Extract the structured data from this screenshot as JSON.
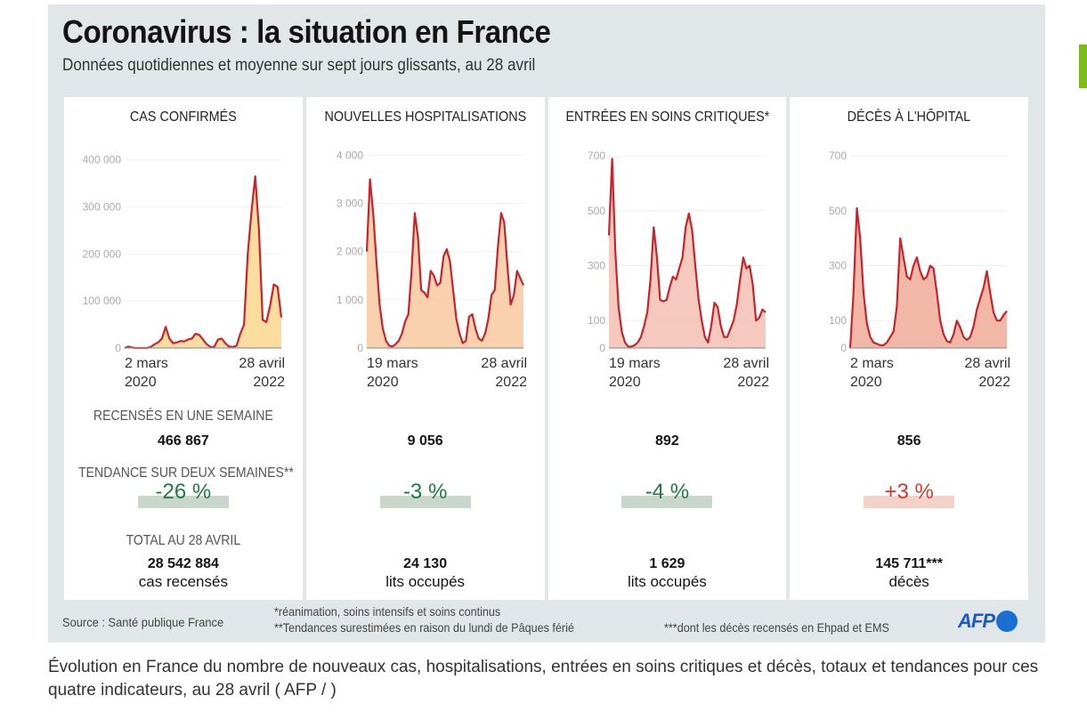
{
  "header": {
    "title": "Coronavirus : la situation en France",
    "subtitle": "Données quotidiennes et moyenne sur sept jours glissants, au 28 avril"
  },
  "labels": {
    "weekly": "RECENSÉS EN UNE SEMAINE",
    "trend": "TENDANCE SUR DEUX SEMAINES**",
    "total": "TOTAL AU 28 AVRIL"
  },
  "colors": {
    "line": "#c8242b",
    "trend_down_text": "#1f7a45",
    "trend_down_bg": "#c9d6cc",
    "trend_up_text": "#d63a32",
    "trend_up_bg": "#f4d2c8",
    "accent_green": "#7dba1f",
    "afp_blue": "#1a5bc6"
  },
  "panels": [
    {
      "title": "CAS CONFIRMÉS",
      "weekly": "466 867",
      "trend": "-26 %",
      "trend_direction": "down",
      "total": "28 542 884",
      "total_sub": "cas recensés"
    },
    {
      "title": "NOUVELLES HOSPITALISATIONS",
      "weekly": "9 056",
      "trend": "-3 %",
      "trend_direction": "down",
      "total": "24 130",
      "total_sub": "lits occupés"
    },
    {
      "title": "ENTRÉES EN SOINS CRITIQUES*",
      "weekly": "892",
      "trend": "-4 %",
      "trend_direction": "down",
      "total": "1 629",
      "total_sub": "lits occupés"
    },
    {
      "title": "DÉCÈS À L'HÔPITAL",
      "weekly": "856",
      "trend": "+3 %",
      "trend_direction": "up",
      "total": "145 711***",
      "total_sub": "décès"
    }
  ],
  "chart_data": [
    {
      "type": "area",
      "title": "CAS CONFIRMÉS",
      "x_start": [
        "2 mars",
        "2020"
      ],
      "x_end": [
        "28 avril",
        "2022"
      ],
      "yticks": [
        0,
        100000,
        200000,
        300000,
        400000
      ],
      "ytick_labels": [
        "0",
        "100 000",
        "200 000",
        "300 000",
        "400 000"
      ],
      "ylim": [
        0,
        420000
      ],
      "fill": "#f9d78e",
      "series_7day_avg": [
        0,
        3000,
        1000,
        0,
        0,
        0,
        0,
        2000,
        8000,
        12000,
        20000,
        45000,
        20000,
        10000,
        12000,
        15000,
        14000,
        18000,
        20000,
        30000,
        28000,
        18000,
        8000,
        2000,
        2000,
        18000,
        20000,
        10000,
        3000,
        2000,
        5000,
        30000,
        50000,
        200000,
        290000,
        365000,
        250000,
        60000,
        55000,
        90000,
        135000,
        130000,
        65000
      ]
    },
    {
      "type": "area",
      "title": "NOUVELLES HOSPITALISATIONS",
      "x_start": [
        "19 mars",
        "2020"
      ],
      "x_end": [
        "28 avril",
        "2022"
      ],
      "yticks": [
        0,
        1000,
        2000,
        3000,
        4000
      ],
      "ytick_labels": [
        "0",
        "1 000",
        "2 000",
        "3 000",
        "4 000"
      ],
      "ylim": [
        0,
        4100
      ],
      "fill": "#f8c9a0",
      "series_7day_avg": [
        2000,
        3500,
        2800,
        1800,
        900,
        400,
        150,
        50,
        30,
        80,
        150,
        300,
        550,
        700,
        1600,
        2800,
        2300,
        1200,
        1150,
        1050,
        1600,
        1500,
        1300,
        1350,
        1900,
        2050,
        1800,
        1200,
        600,
        300,
        100,
        150,
        650,
        700,
        400,
        200,
        150,
        300,
        600,
        1100,
        1200,
        2100,
        2800,
        2600,
        1700,
        900,
        1100,
        1600,
        1450,
        1300
      ]
    },
    {
      "type": "area",
      "title": "ENTRÉES EN SOINS CRITIQUES*",
      "x_start": [
        "19 mars",
        "2020"
      ],
      "x_end": [
        "28 avril",
        "2022"
      ],
      "yticks": [
        0,
        100,
        300,
        500,
        700
      ],
      "ytick_labels": [
        "0",
        "100",
        "300",
        "500",
        "700"
      ],
      "ylim": [
        0,
        720
      ],
      "fill": "#f5c0b3",
      "series_7day_avg": [
        410,
        690,
        350,
        150,
        60,
        20,
        5,
        5,
        10,
        20,
        40,
        80,
        130,
        250,
        440,
        330,
        175,
        170,
        175,
        220,
        260,
        250,
        290,
        330,
        440,
        490,
        430,
        300,
        180,
        100,
        40,
        20,
        80,
        165,
        150,
        80,
        40,
        40,
        70,
        100,
        160,
        250,
        330,
        290,
        300,
        230,
        100,
        110,
        140,
        130
      ]
    },
    {
      "type": "area",
      "title": "DÉCÈS À L'HÔPITAL",
      "x_start": [
        "2 mars",
        "2020"
      ],
      "x_end": [
        "28 avril",
        "2022"
      ],
      "yticks": [
        0,
        100,
        300,
        500,
        700
      ],
      "ytick_labels": [
        "0",
        "100",
        "300",
        "500",
        "700"
      ],
      "ylim": [
        0,
        720
      ],
      "fill": "#efab98",
      "series_7day_avg": [
        0,
        200,
        510,
        400,
        200,
        90,
        40,
        20,
        15,
        10,
        10,
        20,
        40,
        60,
        150,
        400,
        330,
        260,
        250,
        300,
        330,
        280,
        250,
        260,
        300,
        290,
        200,
        100,
        50,
        25,
        20,
        50,
        100,
        75,
        40,
        30,
        40,
        80,
        140,
        180,
        220,
        280,
        200,
        130,
        100,
        100,
        120,
        135
      ]
    }
  ],
  "footer": {
    "source": "Source : Santé publique France",
    "note1": "*réanimation, soins intensifs et soins continus",
    "note2": "**Tendances surestimées en raison du lundi de Pâques férié",
    "note3": "***dont les décès recensés en Ehpad et EMS",
    "logo": "AFP"
  },
  "caption": "Évolution en France du nombre de nouveaux cas, hospitalisations, entrées en soins critiques et décès, totaux et tendances pour ces quatre indicateurs, au 28 avril ( AFP / )"
}
